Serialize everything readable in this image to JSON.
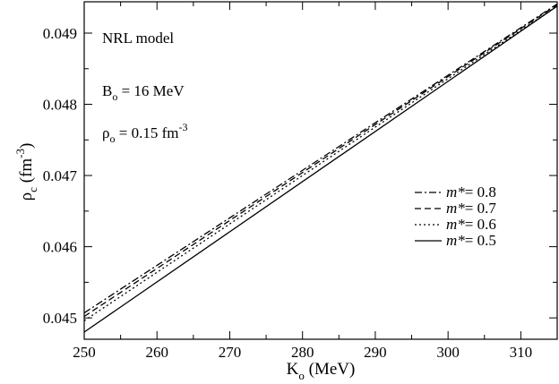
{
  "chart_data": {
    "type": "line",
    "xlim": [
      250,
      315
    ],
    "ylim": [
      0.0447,
      0.04944
    ],
    "x_ticks": [
      250,
      260,
      270,
      280,
      290,
      300,
      310
    ],
    "x_tick_labels": [
      "250",
      "260",
      "270",
      "280",
      "290",
      "300",
      "310"
    ],
    "y_ticks": [
      0.045,
      0.046,
      0.047,
      0.048,
      0.049
    ],
    "y_tick_labels": [
      "0.045",
      "0.046",
      "0.047",
      "0.048",
      "0.049"
    ],
    "xlabel": {
      "main": "K",
      "sub": "o",
      "rest": " (MeV)"
    },
    "ylabel": {
      "main": "ρ",
      "sub": "c",
      "rest": " (fm",
      "sup": "-3",
      "close": ")"
    },
    "annotations": {
      "model": "NRL model",
      "binding": {
        "main": "B",
        "sub": "o",
        "rest": " = 16 MeV"
      },
      "density": {
        "main": "ρ",
        "sub": "o",
        "rest": " = 0.15 fm",
        "sup": "-3"
      }
    },
    "legend_position": "right",
    "grid": false,
    "series": [
      {
        "name": "m*= 0.8",
        "mass_symbol": "m*",
        "mass_value": "= 0.8",
        "dash": "dashdot",
        "x": [
          250,
          315
        ],
        "y": [
          0.04507,
          0.04941
        ]
      },
      {
        "name": "m*= 0.7",
        "mass_symbol": "m*",
        "mass_value": "= 0.7",
        "dash": "dashed",
        "x": [
          250,
          315
        ],
        "y": [
          0.04502,
          0.0494
        ]
      },
      {
        "name": "m*= 0.6",
        "mass_symbol": "m*",
        "mass_value": "= 0.6",
        "dash": "dotted",
        "x": [
          250,
          315
        ],
        "y": [
          0.04496,
          0.04938
        ]
      },
      {
        "name": "m*= 0.5",
        "mass_symbol": "m*",
        "mass_value": "= 0.5",
        "dash": "solid",
        "x": [
          250,
          315
        ],
        "y": [
          0.0448,
          0.04938
        ]
      }
    ]
  }
}
